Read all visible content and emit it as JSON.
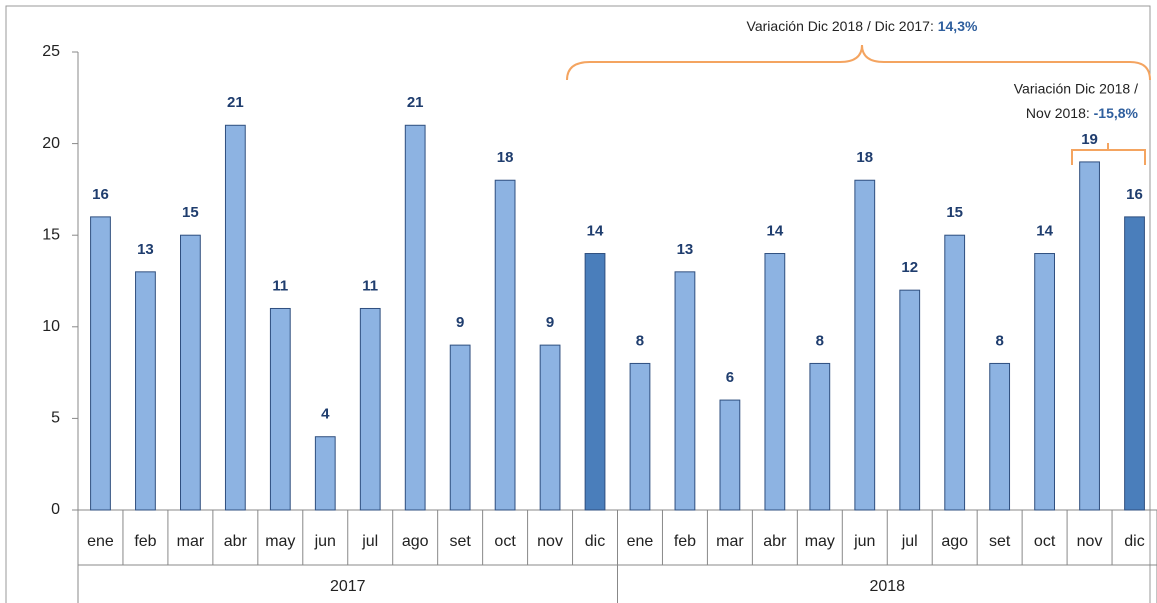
{
  "chart_data": {
    "type": "bar",
    "categories": [
      "ene",
      "feb",
      "mar",
      "abr",
      "may",
      "jun",
      "jul",
      "ago",
      "set",
      "oct",
      "nov",
      "dic",
      "ene",
      "feb",
      "mar",
      "abr",
      "may",
      "jun",
      "jul",
      "ago",
      "set",
      "oct",
      "nov",
      "dic"
    ],
    "groups": [
      "2017",
      "2018"
    ],
    "values": [
      16,
      13,
      15,
      21,
      11,
      4,
      11,
      21,
      9,
      18,
      9,
      14,
      8,
      13,
      6,
      14,
      8,
      18,
      12,
      15,
      8,
      14,
      19,
      16
    ],
    "colors": [
      "#8db3e2",
      "#8db3e2",
      "#8db3e2",
      "#8db3e2",
      "#8db3e2",
      "#8db3e2",
      "#8db3e2",
      "#8db3e2",
      "#8db3e2",
      "#8db3e2",
      "#8db3e2",
      "#4a7ebb",
      "#8db3e2",
      "#8db3e2",
      "#8db3e2",
      "#8db3e2",
      "#8db3e2",
      "#8db3e2",
      "#8db3e2",
      "#8db3e2",
      "#8db3e2",
      "#8db3e2",
      "#8db3e2",
      "#4a7ebb"
    ],
    "ylim": [
      0,
      25
    ],
    "yticks": [
      0,
      5,
      10,
      15,
      20,
      25
    ],
    "grid": false,
    "annotations": [
      {
        "text": "Variación Dic 2018 / Dic 2017: ",
        "highlight": "14,3%"
      },
      {
        "lines": [
          "Variación Dic 2018 /",
          "Nov 2018: "
        ],
        "highlight": "-15,8%"
      }
    ]
  }
}
